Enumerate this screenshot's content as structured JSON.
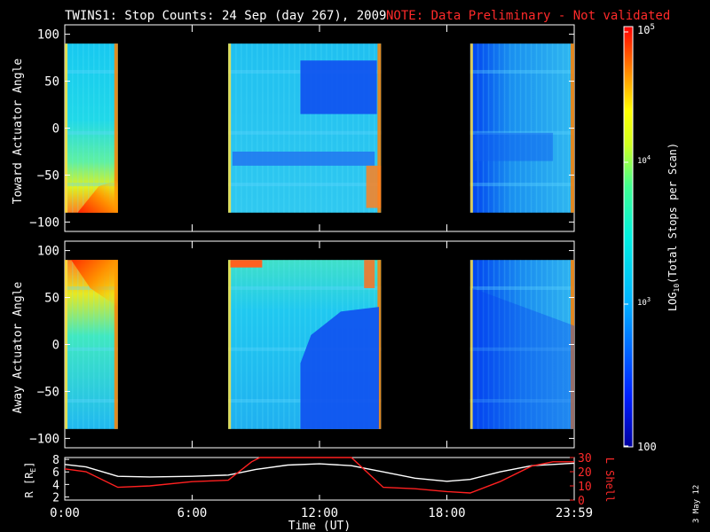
{
  "title": "TWINS1: Stop Counts: 24 Sep (day 267), 2009",
  "note": "NOTE: Data Preliminary - Not validated",
  "date_stamp": "3 May 12",
  "colors": {
    "background": "#000000",
    "foreground": "#ffffff",
    "note": "#ff2a2a",
    "l_shell_line": "#ff2020",
    "r_line": "#ffffff"
  },
  "chart_data": [
    {
      "type": "heatmap",
      "panel": "toward",
      "ylabel": "Toward Actuator Angle",
      "ylim": [
        -110,
        110
      ],
      "yticks": [
        "100",
        "50",
        "0",
        "-50",
        "-100"
      ],
      "xlim_hours": [
        0,
        24
      ],
      "data_intervals_hours": [
        [
          0,
          2.5
        ],
        [
          7.7,
          14.9
        ],
        [
          19.1,
          24
        ]
      ],
      "features": [
        "high counts near -85 deg at 1-2.5 UT",
        "low counts 15 to 70 deg at 11-15 UT",
        "low counts near -30 deg at 7.7-14.9 UT"
      ]
    },
    {
      "type": "heatmap",
      "panel": "away",
      "ylabel": "Away Actuator Angle",
      "ylim": [
        -110,
        110
      ],
      "yticks": [
        "100",
        "50",
        "0",
        "-50",
        "-100"
      ],
      "xlim_hours": [
        0,
        24
      ],
      "data_intervals_hours": [
        [
          0,
          2.5
        ],
        [
          7.7,
          14.9
        ],
        [
          19.1,
          24
        ]
      ],
      "features": [
        "high counts near 85 deg at 0-2.5 UT",
        "low counts -90 to 40 deg at 11-14.9 UT"
      ]
    },
    {
      "type": "line",
      "panel": "orbit",
      "xlabel": "Time (UT)",
      "xticks": [
        "0:00",
        "6:00",
        "12:00",
        "18:00",
        "23:59"
      ],
      "ylabel_left": "R [RE]",
      "yticks_left": [
        "8",
        "6",
        "4",
        "2"
      ],
      "ylim_left": [
        1.5,
        8.3
      ],
      "ylabel_right": "L Shell",
      "yticks_right": [
        "30",
        "20",
        "10",
        "0"
      ],
      "ylim_right": [
        0,
        30
      ],
      "series": [
        {
          "name": "R [RE]",
          "axis": "left",
          "x": [
            0,
            1,
            2.5,
            4,
            6,
            7.7,
            9,
            10.5,
            12,
            13.5,
            15,
            16.5,
            18,
            19.1,
            20.5,
            22,
            24
          ],
          "values": [
            7.2,
            6.8,
            5.3,
            5.2,
            5.3,
            5.5,
            6.4,
            7.1,
            7.3,
            7.0,
            6.0,
            5.0,
            4.5,
            4.8,
            6.0,
            7.0,
            7.4
          ]
        },
        {
          "name": "L Shell",
          "axis": "right",
          "x": [
            0,
            1,
            2.5,
            4,
            6,
            7.7,
            8.8,
            9.2,
            13.5,
            15,
            16.5,
            18,
            19.1,
            20.5,
            22,
            23,
            24
          ],
          "values": [
            22,
            20,
            9,
            10,
            13,
            14,
            27,
            30,
            30,
            9,
            8,
            6,
            5,
            13,
            24,
            27,
            27
          ]
        }
      ]
    },
    {
      "type": "colorbar",
      "label": "LOG10(Total Stops per Scan)",
      "tick_labels": [
        "100",
        "10^3",
        "10^4",
        "10^5"
      ],
      "range": [
        100,
        100000
      ],
      "scale": "log",
      "colormap": [
        "#0000a0",
        "#0020ff",
        "#00c8ff",
        "#00ffb0",
        "#b0ff30",
        "#ffff00",
        "#ff8000",
        "#ff0000"
      ]
    }
  ],
  "labels": {
    "colorbar_log": "LOG",
    "colorbar_sub": "10",
    "colorbar_rest": "(Total Stops per Scan)",
    "cb_100": "100",
    "cb_10": "10",
    "cb_e3": "3",
    "cb_e4": "4",
    "cb_e5": "5",
    "r_label": "R [R",
    "r_sub": "E",
    "r_close": "]"
  }
}
